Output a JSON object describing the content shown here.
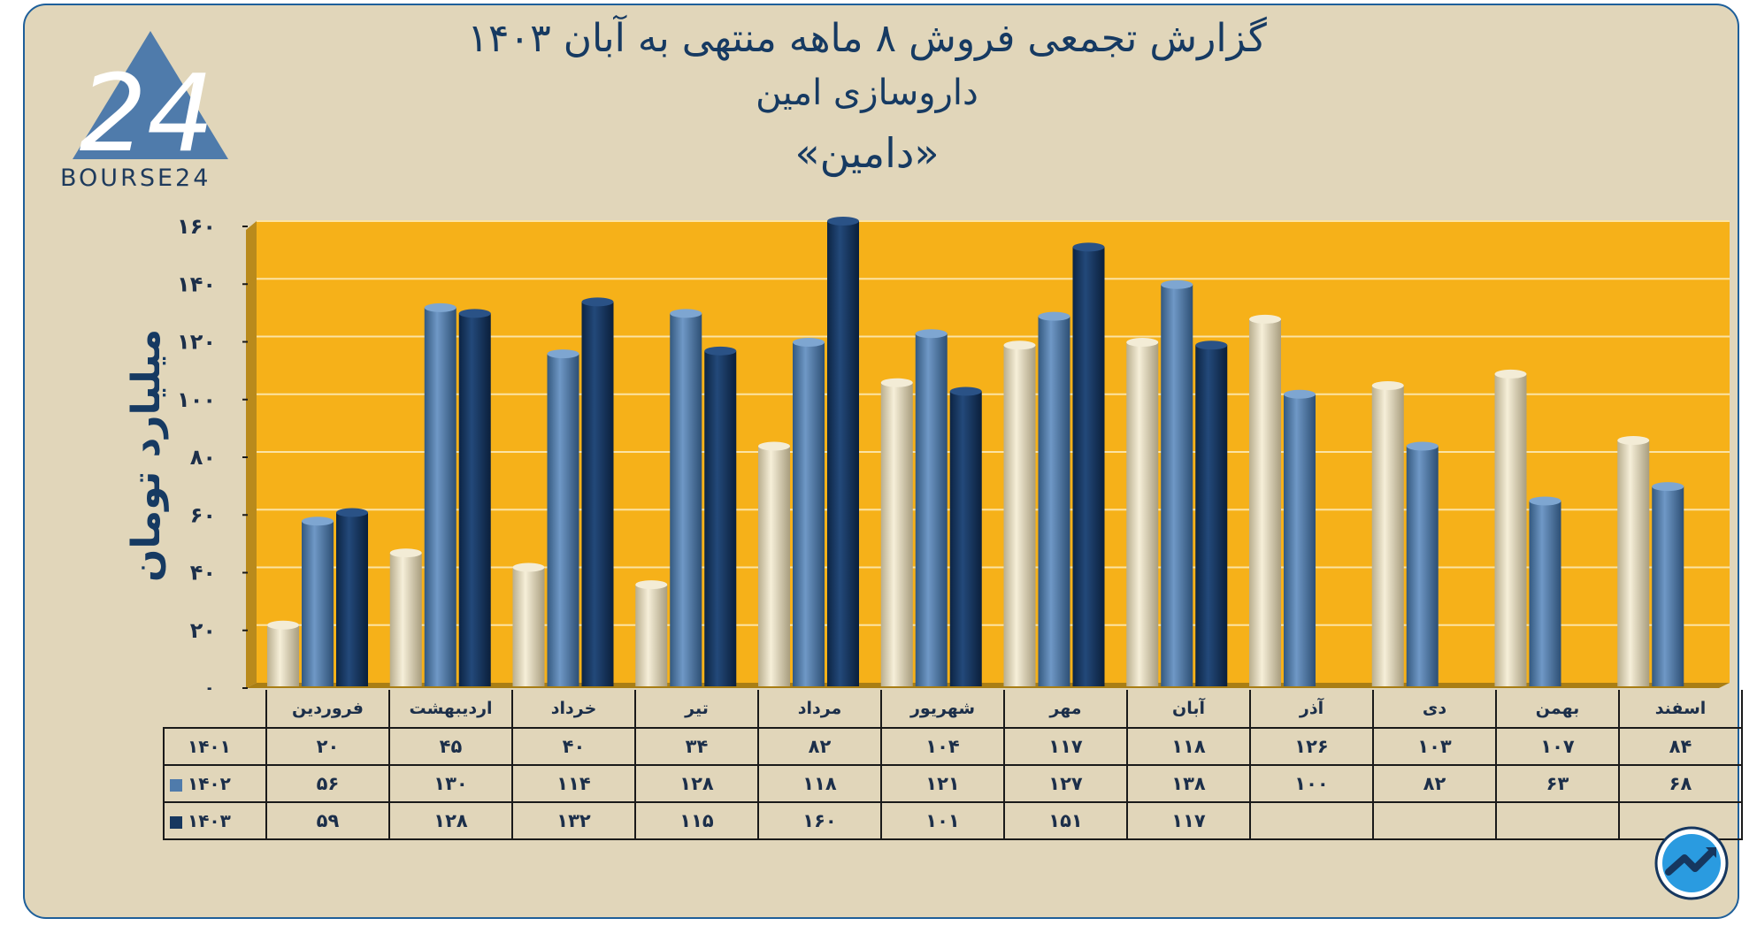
{
  "header": {
    "title_line1": "گزارش تجمعی فروش ۸ ماهه منتهی به آبان ۱۴۰۳",
    "title_line2": "داروسازی امین",
    "title_line3": "«دامین»"
  },
  "logo": {
    "text": "BOURSE24",
    "mark": "24"
  },
  "colors": {
    "background": "#e1d6ba",
    "plot_area": "#f6b119",
    "series_1401": "#e8dfc3",
    "series_1402": "#4f7bab",
    "series_1403": "#16375f",
    "text": "#163a62"
  },
  "chart_data": {
    "type": "bar",
    "ylabel": "میلیارد تومان",
    "ylim": [
      0,
      160
    ],
    "yticks": [
      "۰",
      "۲۰",
      "۴۰",
      "۶۰",
      "۸۰",
      "۱۰۰",
      "۱۲۰",
      "۱۴۰",
      "۱۶۰"
    ],
    "grid": true,
    "categories": [
      "فروردین",
      "اردیبهشت",
      "خرداد",
      "تیر",
      "مرداد",
      "شهریور",
      "مهر",
      "آبان",
      "آذر",
      "دی",
      "بهمن",
      "اسفند"
    ],
    "series": [
      {
        "name": "۱۴۰۱",
        "values": [
          20,
          45,
          40,
          34,
          82,
          104,
          117,
          118,
          126,
          103,
          107,
          84
        ],
        "labels": [
          "۲۰",
          "۴۵",
          "۴۰",
          "۳۴",
          "۸۲",
          "۱۰۴",
          "۱۱۷",
          "۱۱۸",
          "۱۲۶",
          "۱۰۳",
          "۱۰۷",
          "۸۴"
        ]
      },
      {
        "name": "۱۴۰۲",
        "values": [
          56,
          130,
          114,
          128,
          118,
          121,
          127,
          138,
          100,
          82,
          63,
          68
        ],
        "labels": [
          "۵۶",
          "۱۳۰",
          "۱۱۴",
          "۱۲۸",
          "۱۱۸",
          "۱۲۱",
          "۱۲۷",
          "۱۳۸",
          "۱۰۰",
          "۸۲",
          "۶۳",
          "۶۸"
        ]
      },
      {
        "name": "۱۴۰۳",
        "values": [
          59,
          128,
          132,
          115,
          160,
          101,
          151,
          117,
          null,
          null,
          null,
          null
        ],
        "labels": [
          "۵۹",
          "۱۲۸",
          "۱۳۲",
          "۱۱۵",
          "۱۶۰",
          "۱۰۱",
          "۱۵۱",
          "۱۱۷",
          "",
          "",
          "",
          ""
        ]
      }
    ]
  }
}
